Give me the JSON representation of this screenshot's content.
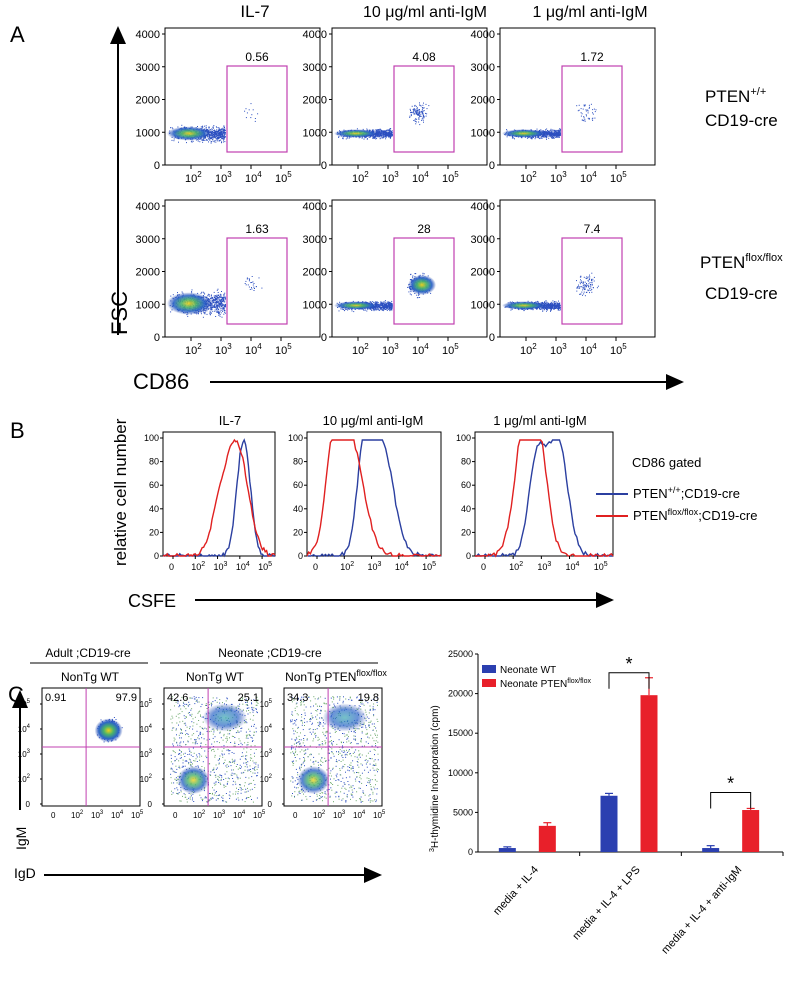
{
  "panel_a": {
    "label": "A",
    "y_axis": "FSC",
    "x_axis": "CD86",
    "conditions": [
      "IL-7",
      "10 μg/ml anti-IgM",
      "1 μg/ml anti-IgM"
    ],
    "rows": [
      {
        "genotype_line1": "PTEN",
        "genotype_sup": "+/+",
        "genotype_line2": "CD19-cre",
        "gate_values": [
          "0.56",
          "4.08",
          "1.72"
        ]
      },
      {
        "genotype_line1": "PTEN",
        "genotype_sup": "flox/flox",
        "genotype_line2": "CD19-cre",
        "gate_values": [
          "1.63",
          "28",
          "7.4"
        ]
      }
    ],
    "y_ticks": [
      "4000",
      "3000",
      "2000",
      "1000",
      "0"
    ],
    "x_ticks": [
      "10",
      "10",
      "10",
      "10"
    ],
    "x_tick_exps": [
      "2",
      "3",
      "4",
      "5"
    ]
  },
  "panel_b": {
    "label": "B",
    "y_axis": "relative cell number",
    "x_axis": "CSFE",
    "titles": [
      "IL-7",
      "10 μg/ml anti-IgM",
      "1 μg/ml anti-IgM"
    ],
    "y_ticks": [
      "100",
      "80",
      "60",
      "40",
      "20",
      "0"
    ],
    "x_ticks": [
      "0",
      "10",
      "10",
      "10",
      "10"
    ],
    "x_tick_exps": [
      "",
      "2",
      "3",
      "4",
      "5"
    ],
    "gate_note": "CD86 gated",
    "legend": [
      {
        "text_main": "PTEN",
        "sup": "+/+",
        "rest": ";CD19-cre",
        "color": "#2b3fa0"
      },
      {
        "text_main": "PTEN",
        "sup": "flox/flox",
        "rest": ";CD19-cre",
        "color": "#e02020"
      }
    ]
  },
  "panel_c": {
    "label": "C",
    "group_adult": "Adult ;CD19-cre",
    "group_neonate": "Neonate ;CD19-cre",
    "plots": [
      {
        "title": "NonTg   WT",
        "quadrants": [
          "0.91",
          "97.9"
        ]
      },
      {
        "title": "NonTg WT",
        "quadrants": [
          "42.6",
          "25.1"
        ]
      },
      {
        "title_main": "NonTg PTEN",
        "title_sup": "flox/flox",
        "quadrants": [
          "34.3",
          "19.8"
        ]
      }
    ],
    "y_axis": "IgM",
    "x_axis": "IgD",
    "y_ticks": [
      "10",
      "10",
      "10",
      "10",
      "0"
    ],
    "y_tick_exps": [
      "5",
      "4",
      "3",
      "2",
      ""
    ],
    "x_ticks": [
      "0",
      "10",
      "10",
      "10",
      "10"
    ],
    "x_tick_exps": [
      "",
      "2",
      "3",
      "4",
      "5"
    ]
  },
  "chart_data": {
    "type": "bar",
    "title": "",
    "ylabel_sup": "3",
    "ylabel": "H-thymidine Incorporation (cpm)",
    "xlabel": "",
    "ylim": [
      0,
      25000
    ],
    "y_ticks": [
      "25000",
      "20000",
      "15000",
      "10000",
      "5000",
      "0"
    ],
    "categories": [
      "media + IL-4",
      "media + IL-4 + LPS",
      "media + IL-4 + anti-IgM"
    ],
    "series": [
      {
        "name": "Neonate WT",
        "color": "#2b3fb0",
        "values": [
          500,
          7100,
          500
        ],
        "errors": [
          150,
          300,
          300
        ]
      },
      {
        "name_main": "Neonate PTEN",
        "name_sup": "flox/flox",
        "color": "#e8202a",
        "values": [
          3300,
          19800,
          5300
        ],
        "errors": [
          400,
          2200,
          200
        ]
      }
    ],
    "significance": [
      "*",
      "*"
    ]
  }
}
